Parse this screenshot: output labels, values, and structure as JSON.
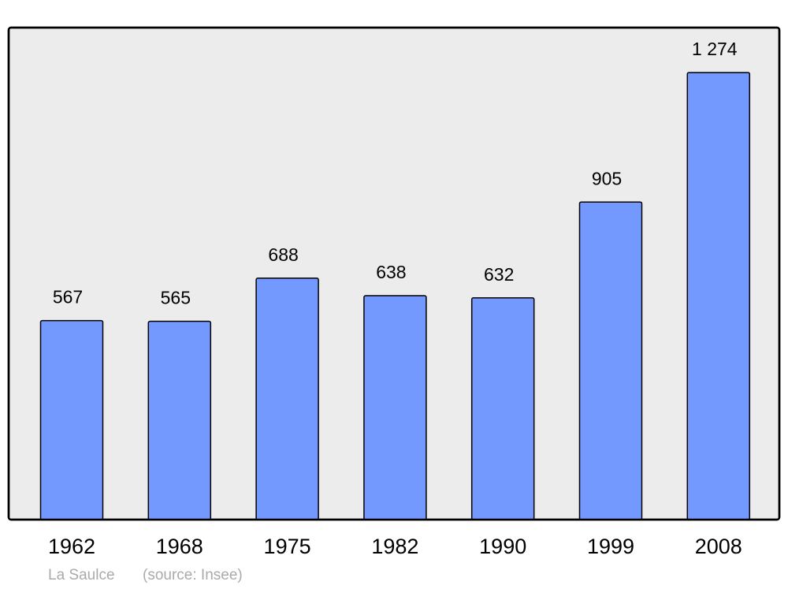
{
  "chart_data": {
    "type": "bar",
    "categories": [
      "1962",
      "1968",
      "1975",
      "1982",
      "1990",
      "1999",
      "2008"
    ],
    "values": [
      567,
      565,
      688,
      638,
      632,
      905,
      1274
    ],
    "value_labels": [
      "567",
      "565",
      "688",
      "638",
      "632",
      "905",
      "1 274"
    ],
    "color": "#7399ff",
    "caption": "La Saulce",
    "source": "(source: Insee)"
  }
}
